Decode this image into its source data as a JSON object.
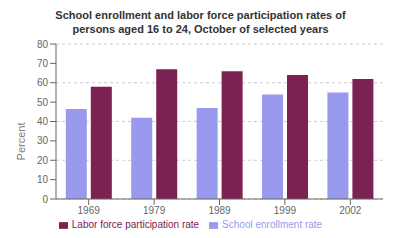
{
  "chart_data": {
    "type": "bar",
    "title": "School enrollment and labor force participation rates of\npersons aged 16 to 24, October of selected years",
    "categories": [
      "1969",
      "1979",
      "1989",
      "1999",
      "2002"
    ],
    "series": [
      {
        "name": "School enrollment rate",
        "color": "#9999EE",
        "values": [
          46.5,
          42.0,
          47.0,
          54.0,
          55.0
        ]
      },
      {
        "name": "Labor force participation rate",
        "color": "#7B2252",
        "values": [
          58.0,
          67.0,
          66.0,
          64.0,
          62.0
        ]
      }
    ],
    "ylabel": "Percent",
    "ylim": [
      0,
      80
    ],
    "yticks": [
      0,
      10,
      20,
      30,
      40,
      50,
      60,
      70,
      80
    ],
    "grid": true,
    "legend": "bottom"
  }
}
